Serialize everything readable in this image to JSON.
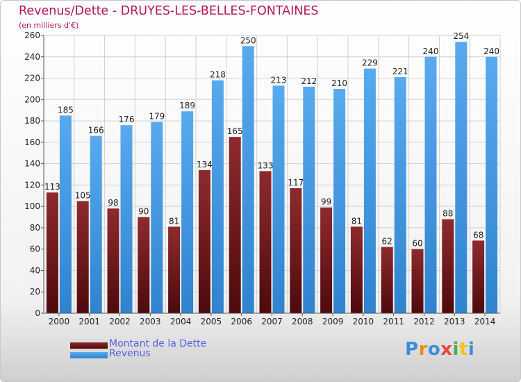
{
  "title": "Revenus/Dette - DRUYES-LES-BELLES-FONTAINES",
  "subtitle": "(en milliers d'€)",
  "logo_text": "Proxiti",
  "colors": {
    "title": "#b2185b",
    "dette": "#7a1a1e",
    "revenus": "#3b8fd9",
    "legend_text": "#5560e0",
    "grid": "#d0d0d0"
  },
  "chart_data": {
    "type": "bar",
    "categories": [
      "2000",
      "2001",
      "2002",
      "2003",
      "2004",
      "2005",
      "2006",
      "2007",
      "2008",
      "2009",
      "2010",
      "2011",
      "2012",
      "2013",
      "2014"
    ],
    "series": [
      {
        "name": "Montant de la Dette",
        "values": [
          113,
          105,
          98,
          90,
          81,
          134,
          165,
          133,
          117,
          99,
          81,
          62,
          60,
          88,
          68
        ]
      },
      {
        "name": "Revenus",
        "values": [
          185,
          166,
          176,
          179,
          189,
          218,
          250,
          213,
          212,
          210,
          229,
          221,
          240,
          254,
          240
        ]
      }
    ],
    "title": "Revenus/Dette - DRUYES-LES-BELLES-FONTAINES",
    "subtitle": "(en milliers d'€)",
    "ylim": [
      0,
      260
    ],
    "yticks": [
      0,
      20,
      40,
      60,
      80,
      100,
      120,
      140,
      160,
      180,
      200,
      220,
      240,
      260
    ],
    "grid": true,
    "legend_position": "bottom-left"
  }
}
